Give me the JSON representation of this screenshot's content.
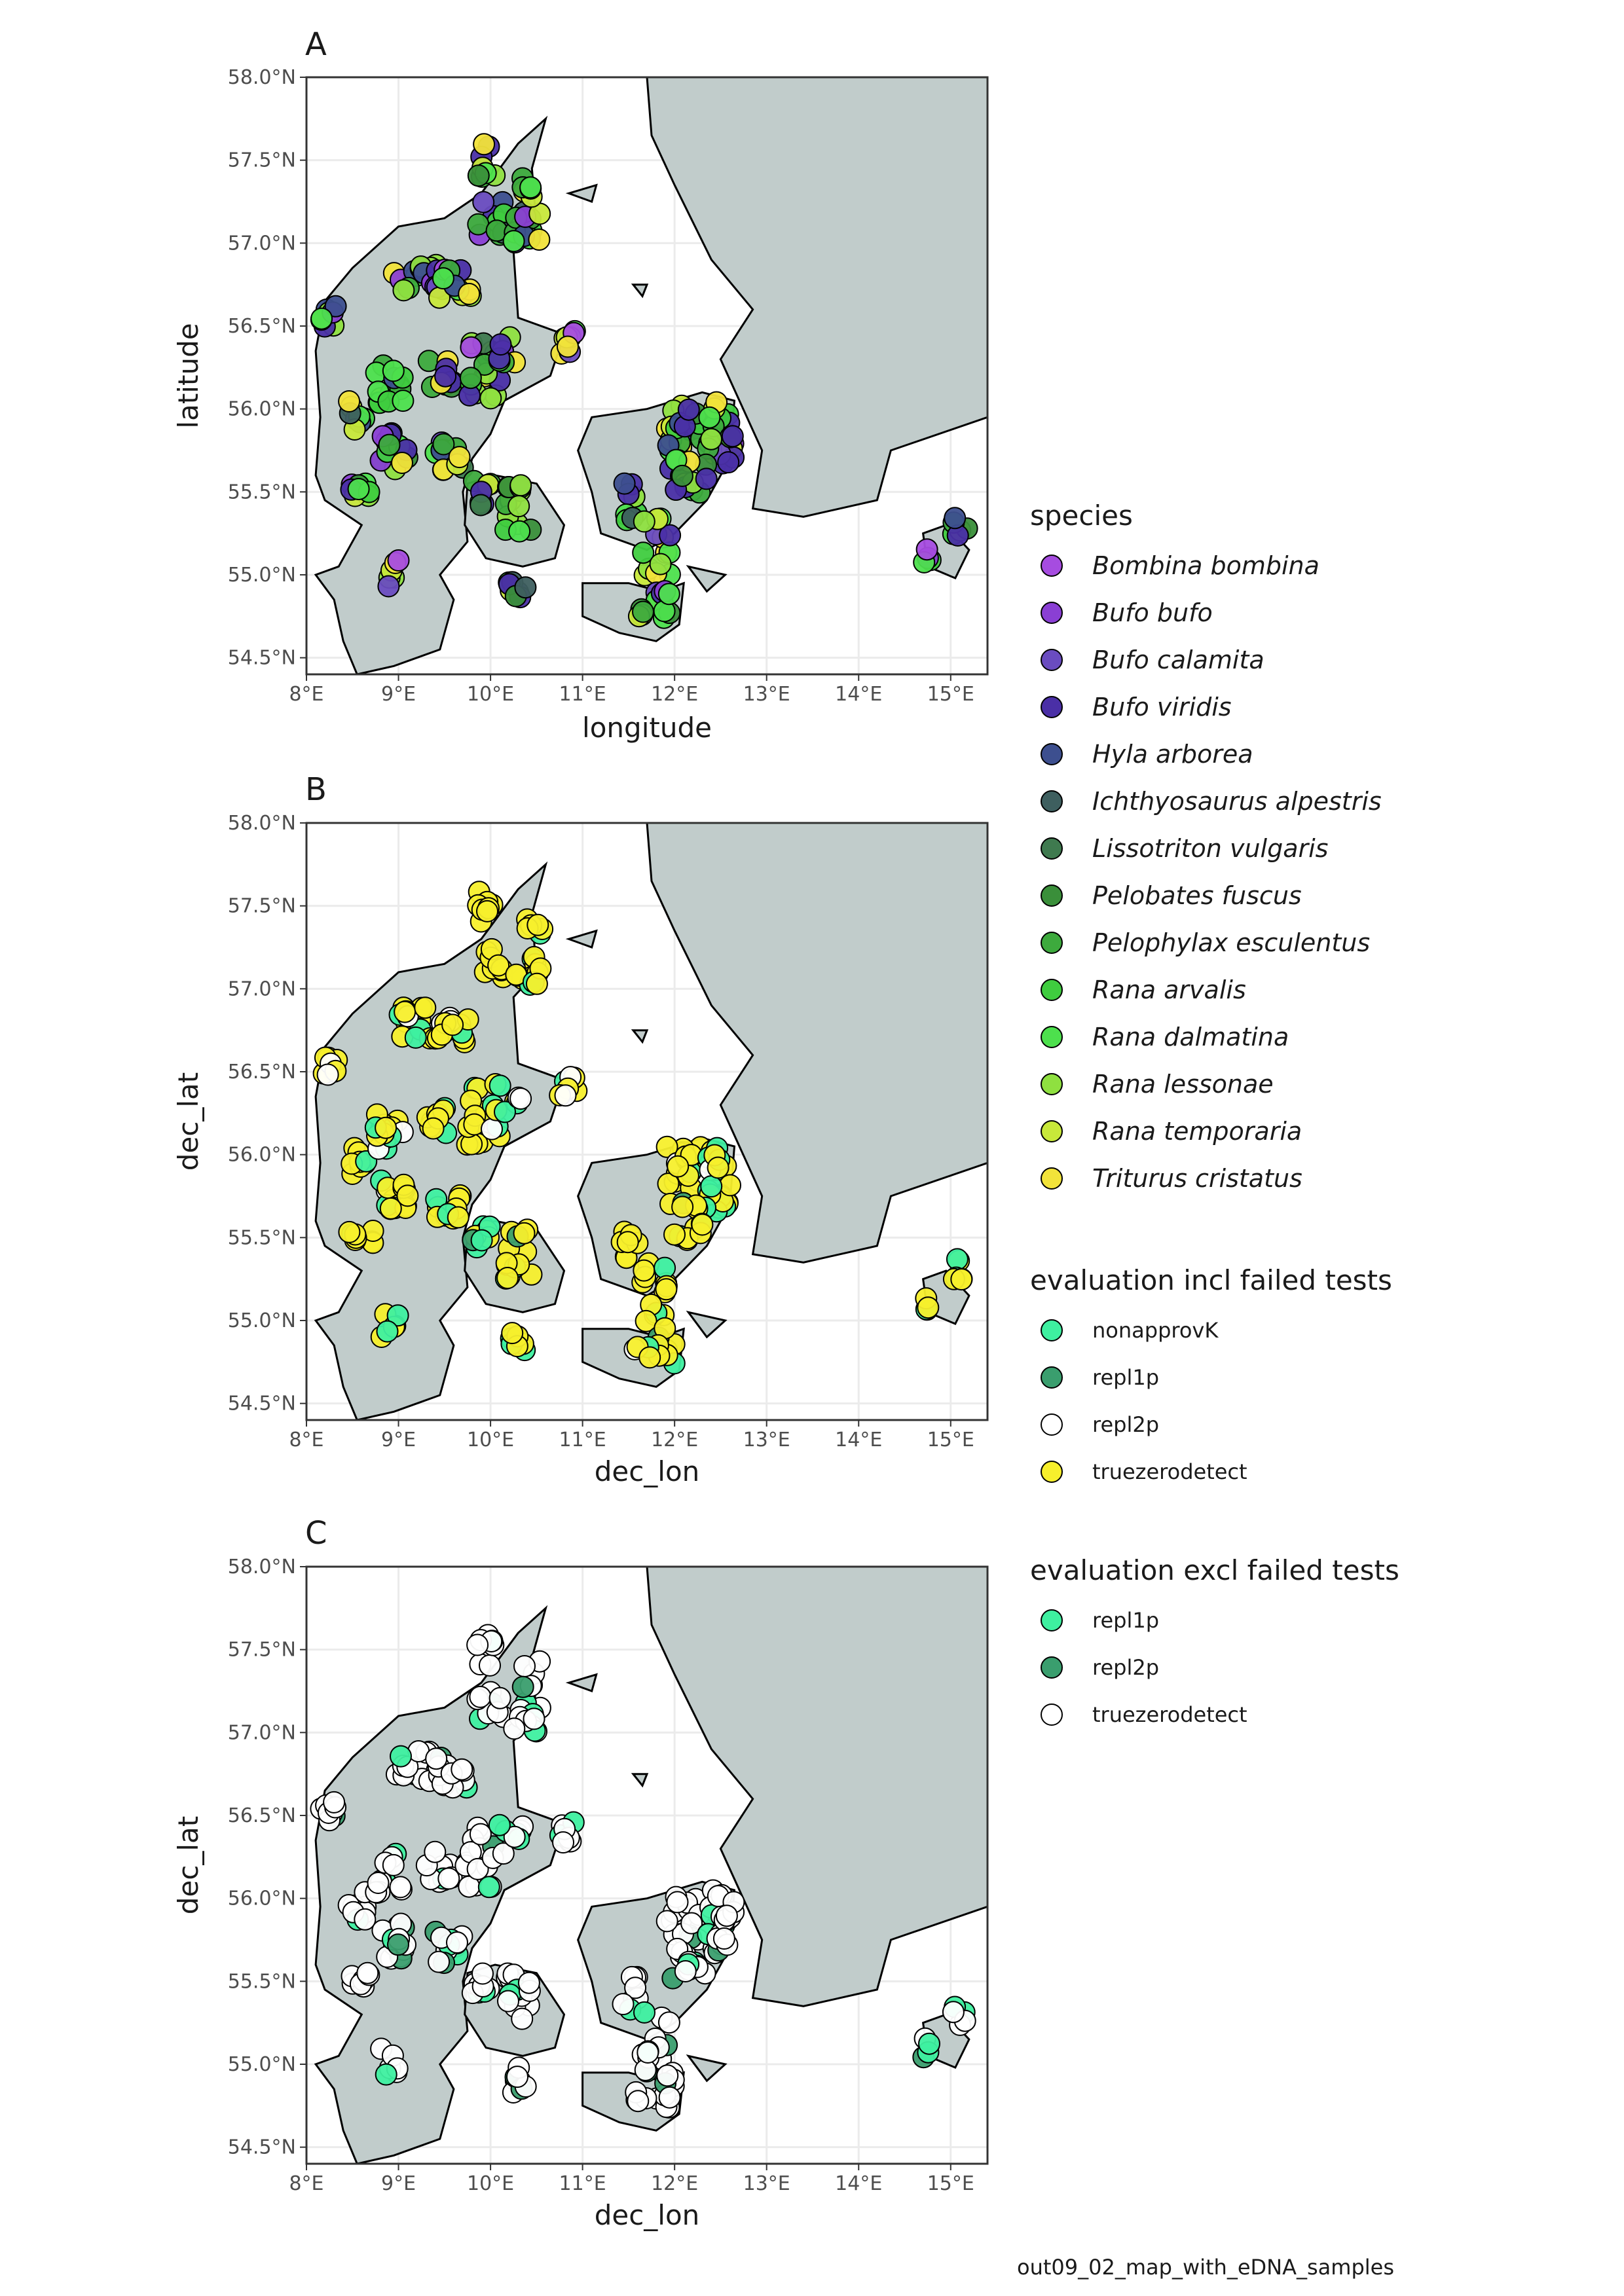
{
  "figure": {
    "caption": "out09_02_map_with_eDNA_samples"
  },
  "colors": {
    "land_other": "#c1cccb",
    "grid": "#ebebeb",
    "panel_border": "#333333",
    "coast": "#000000"
  },
  "chart_data": [
    {
      "type": "scatter",
      "tag": "A",
      "xlabel": "longitude",
      "ylabel": "latitude",
      "xlim": [
        8.0,
        15.4
      ],
      "ylim": [
        54.4,
        58.0
      ],
      "xticks": [
        "8°E",
        "9°E",
        "10°E",
        "11°E",
        "12°E",
        "13°E",
        "14°E",
        "15°E"
      ],
      "yticks": [
        "54.5°N",
        "55.0°N",
        "55.5°N",
        "56.0°N",
        "56.5°N",
        "57.0°N",
        "57.5°N",
        "58.0°N"
      ],
      "color_by": "species"
    },
    {
      "type": "scatter",
      "tag": "B",
      "xlabel": "dec_lon",
      "ylabel": "dec_lat",
      "xlim": [
        8.0,
        15.4
      ],
      "ylim": [
        54.4,
        58.0
      ],
      "xticks": [
        "8°E",
        "9°E",
        "10°E",
        "11°E",
        "12°E",
        "13°E",
        "14°E",
        "15°E"
      ],
      "yticks": [
        "54.5°N",
        "55.0°N",
        "55.5°N",
        "56.0°N",
        "56.5°N",
        "57.0°N",
        "57.5°N",
        "58.0°N"
      ],
      "color_by": "evaluation incl failed tests"
    },
    {
      "type": "scatter",
      "tag": "C",
      "xlabel": "dec_lon",
      "ylabel": "dec_lat",
      "xlim": [
        8.0,
        15.4
      ],
      "ylim": [
        54.4,
        58.0
      ],
      "xticks": [
        "8°E",
        "9°E",
        "10°E",
        "11°E",
        "12°E",
        "13°E",
        "14°E",
        "15°E"
      ],
      "yticks": [
        "54.5°N",
        "55.0°N",
        "55.5°N",
        "56.0°N",
        "56.5°N",
        "57.0°N",
        "57.5°N",
        "58.0°N"
      ],
      "color_by": "evaluation excl failed tests"
    }
  ],
  "legends": [
    {
      "title": "species",
      "italic": true,
      "entries": [
        {
          "label": "Bombina bombina",
          "color": "#a64ce0"
        },
        {
          "label": "Bufo bufo",
          "color": "#8a3fd4"
        },
        {
          "label": "Bufo calamita",
          "color": "#6a4cc0"
        },
        {
          "label": "Bufo viridis",
          "color": "#4a2fa6"
        },
        {
          "label": "Hyla arborea",
          "color": "#3d4f8f"
        },
        {
          "label": "Ichthyosaurus alpestris",
          "color": "#3e5f5f"
        },
        {
          "label": "Lissotriton vulgaris",
          "color": "#3f7a4f"
        },
        {
          "label": "Pelobates fuscus",
          "color": "#3a8f3a"
        },
        {
          "label": "Pelophylax esculentus",
          "color": "#3daa3d"
        },
        {
          "label": "Rana arvalis",
          "color": "#3fcc3f"
        },
        {
          "label": "Rana dalmatina",
          "color": "#4de04d"
        },
        {
          "label": "Rana lessonae",
          "color": "#8fe040"
        },
        {
          "label": "Rana temporaria",
          "color": "#c8e83a"
        },
        {
          "label": "Triturus cristatus",
          "color": "#f2e33a"
        }
      ]
    },
    {
      "title": "evaluation incl failed tests",
      "italic": false,
      "entries": [
        {
          "label": "nonapprovK",
          "color": "#3ef0a0"
        },
        {
          "label": "repl1p",
          "color": "#3a9e6e"
        },
        {
          "label": "repl2p",
          "color": "#ffffff"
        },
        {
          "label": "truezerodetect",
          "color": "#f7ef2c"
        }
      ]
    },
    {
      "title": "evaluation excl failed tests",
      "italic": false,
      "entries": [
        {
          "label": "repl1p",
          "color": "#3ef0a0"
        },
        {
          "label": "repl2p",
          "color": "#3a9e6e"
        },
        {
          "label": "truezerodetect",
          "color": "#ffffff"
        }
      ]
    }
  ]
}
